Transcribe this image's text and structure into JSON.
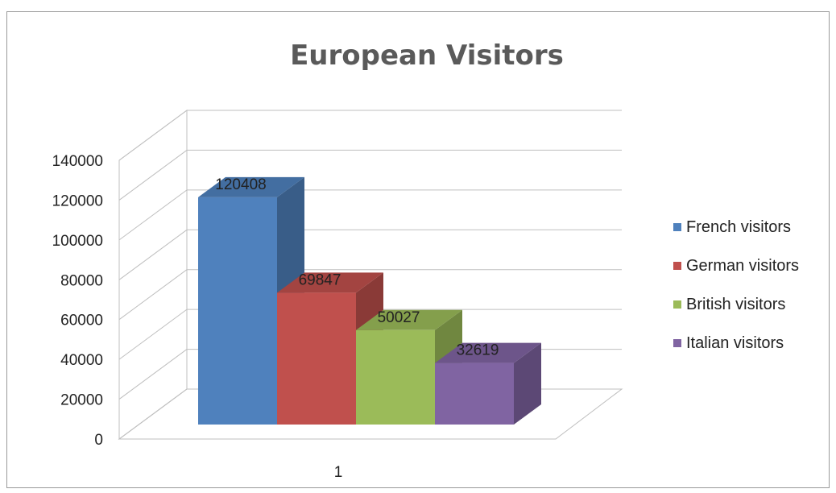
{
  "chart_data": {
    "type": "bar",
    "title": "European Visitors",
    "categories": [
      "1"
    ],
    "series": [
      {
        "name": "French visitors",
        "values": [
          120408
        ],
        "color": "#4f81bd"
      },
      {
        "name": "German visitors",
        "values": [
          69847
        ],
        "color": "#c0504d"
      },
      {
        "name": "British visitors",
        "values": [
          50027
        ],
        "color": "#9bbb59"
      },
      {
        "name": "Italian visitors",
        "values": [
          32619
        ],
        "color": "#8064a2"
      }
    ],
    "data_labels": [
      "120408",
      "69847",
      "50027",
      "32619"
    ],
    "y_ticks": [
      "0",
      "20000",
      "40000",
      "60000",
      "80000",
      "100000",
      "120000",
      "140000"
    ],
    "ylim": [
      0,
      140000
    ],
    "xlabel": "",
    "ylabel": "",
    "grid": true,
    "style": "3d-clustered-column",
    "legend_position": "right"
  }
}
